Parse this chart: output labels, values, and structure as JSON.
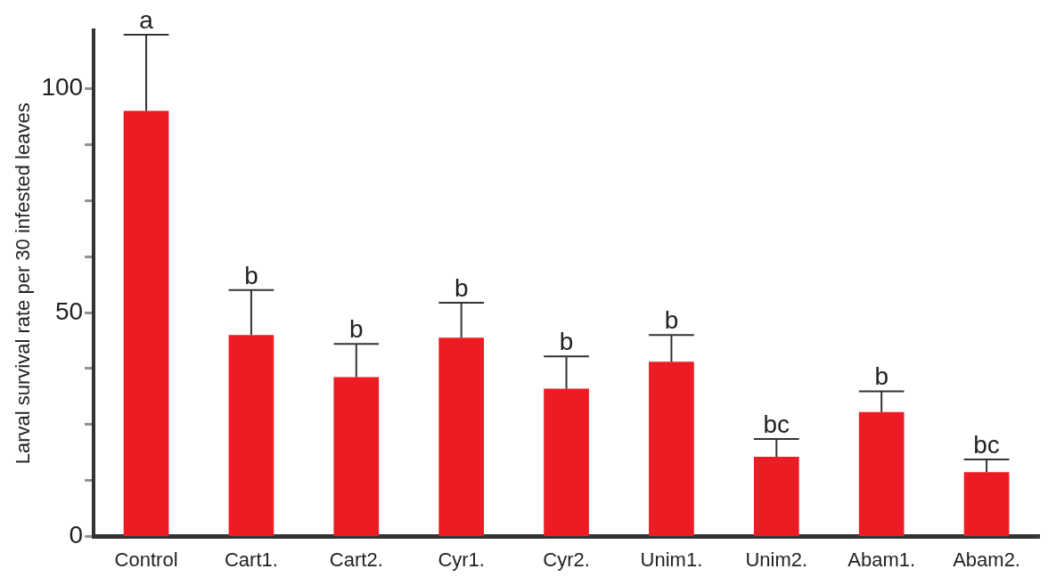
{
  "chart_data": {
    "type": "bar",
    "ylabel": "Larval survival rate per 30 infested leaves",
    "categories": [
      "Control",
      "Cart1.",
      "Cart2.",
      "Cyr1.",
      "Cyr2.",
      "Unim1.",
      "Unim2.",
      "Abam1.",
      "Abam2."
    ],
    "values": [
      95,
      45,
      35.6,
      44.4,
      33,
      39,
      17.8,
      27.8,
      14.4
    ],
    "errors": [
      [
        95,
        112
      ],
      [
        45,
        55
      ],
      [
        35.6,
        43
      ],
      [
        44.4,
        52.2
      ],
      [
        33,
        40.2
      ],
      [
        39,
        45
      ],
      [
        17.8,
        21.8
      ],
      [
        27.8,
        32.4
      ],
      [
        14.4,
        17.2
      ]
    ],
    "color": "#ed1c24",
    "ylim": [
      0,
      113
    ],
    "yticks": [
      0,
      {
        "value": 12.5,
        "label": null
      },
      {
        "value": 25,
        "label": null
      },
      {
        "value": 37.5,
        "label": null
      },
      50,
      {
        "value": 62.5,
        "label": null
      },
      {
        "value": 75,
        "label": null
      },
      {
        "value": 87.5,
        "label": null
      },
      100
    ],
    "annotations": [
      {
        "text": "a",
        "x": "Control",
        "y": 112
      },
      {
        "text": "b",
        "x": "Cart1.",
        "y": 55
      },
      {
        "text": "b",
        "x": "Cart2.",
        "y": 43
      },
      {
        "text": "b",
        "x": "Cyr1.",
        "y": 52.2
      },
      {
        "text": "b",
        "x": "Cyr2.",
        "y": 40.2
      },
      {
        "text": "b",
        "x": "Unim1.",
        "y": 45
      },
      {
        "text": "bc",
        "x": "Unim2.",
        "y": 21.8
      },
      {
        "text": "b",
        "x": "Abam1.",
        "y": 32.4
      },
      {
        "text": "bc",
        "x": "Abam2.",
        "y": 17.2
      }
    ],
    "grid": false,
    "legend": false
  }
}
